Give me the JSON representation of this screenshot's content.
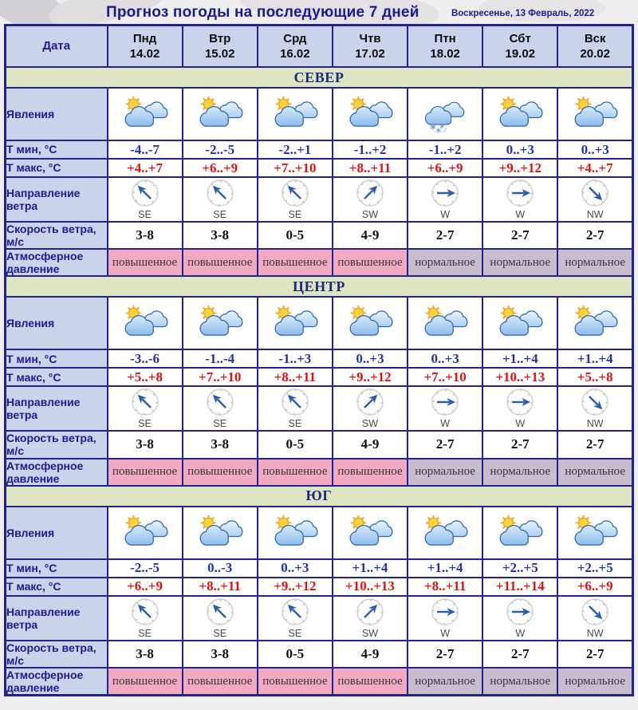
{
  "title": "Прогноз погоды на последующие 7 дней",
  "date_label": "Воскресенье, 13 Февраль, 2022",
  "header": {
    "date_col": "Дата",
    "days": [
      {
        "name": "Пнд",
        "date": "14.02"
      },
      {
        "name": "Втр",
        "date": "15.02"
      },
      {
        "name": "Срд",
        "date": "16.02"
      },
      {
        "name": "Чтв",
        "date": "17.02"
      },
      {
        "name": "Птн",
        "date": "18.02"
      },
      {
        "name": "Сбт",
        "date": "19.02"
      },
      {
        "name": "Вск",
        "date": "20.02"
      }
    ]
  },
  "row_labels": {
    "phenomena": "Явления",
    "tmin": "Т мин, °С",
    "tmax": "Т макс, °С",
    "wind_dir": "Направление ветра",
    "wind_speed": "Скорость ветра, м/с",
    "pressure": "Атмосферное давление"
  },
  "sections": [
    {
      "name": "СЕВЕР",
      "icons": [
        "sun-clouds",
        "sun-clouds",
        "sun-clouds",
        "sun-clouds",
        "snow-clouds",
        "sun-clouds",
        "sun-clouds"
      ],
      "tmin": [
        "-4..-7",
        "-2..-5",
        "-2..+1",
        "-1..+2",
        "-1..+2",
        "0..+3",
        "0..+3"
      ],
      "tmax": [
        "+4..+7",
        "+6..+9",
        "+7..+10",
        "+8..+11",
        "+6..+9",
        "+9..+12",
        "+4..+7"
      ],
      "wind_dir": [
        "SE",
        "SE",
        "SE",
        "SW",
        "W",
        "W",
        "NW"
      ],
      "wind_speed": [
        "3-8",
        "3-8",
        "0-5",
        "4-9",
        "2-7",
        "2-7",
        "2-7"
      ],
      "pressure": [
        "повышенное",
        "повышенное",
        "повышенное",
        "повышенное",
        "нормальное",
        "нормальное",
        "нормальное"
      ]
    },
    {
      "name": "ЦЕНТР",
      "icons": [
        "sun-clouds",
        "sun-clouds",
        "sun-clouds",
        "sun-clouds",
        "sun-clouds",
        "sun-clouds",
        "sun-clouds"
      ],
      "tmin": [
        "-3..-6",
        "-1..-4",
        "-1..+3",
        "0..+3",
        "0..+3",
        "+1..+4",
        "+1..+4"
      ],
      "tmax": [
        "+5..+8",
        "+7..+10",
        "+8..+11",
        "+9..+12",
        "+7..+10",
        "+10..+13",
        "+5..+8"
      ],
      "wind_dir": [
        "SE",
        "SE",
        "SE",
        "SW",
        "W",
        "W",
        "NW"
      ],
      "wind_speed": [
        "3-8",
        "3-8",
        "0-5",
        "4-9",
        "2-7",
        "2-7",
        "2-7"
      ],
      "pressure": [
        "повышенное",
        "повышенное",
        "повышенное",
        "повышенное",
        "нормальное",
        "нормальное",
        "нормальное"
      ]
    },
    {
      "name": "ЮГ",
      "icons": [
        "sun-clouds",
        "sun-clouds",
        "sun-clouds",
        "sun-clouds",
        "sun-clouds",
        "sun-clouds",
        "sun-clouds"
      ],
      "tmin": [
        "-2..-5",
        "0..-3",
        "0..+3",
        "+1..+4",
        "+1..+4",
        "+2..+5",
        "+2..+5"
      ],
      "tmax": [
        "+6..+9",
        "+8..+11",
        "+9..+12",
        "+10..+13",
        "+8..+11",
        "+11..+14",
        "+6..+9"
      ],
      "wind_dir": [
        "SE",
        "SE",
        "SE",
        "SW",
        "W",
        "W",
        "NW"
      ],
      "wind_speed": [
        "3-8",
        "3-8",
        "0-5",
        "4-9",
        "2-7",
        "2-7",
        "2-7"
      ],
      "pressure": [
        "повышенное",
        "повышенное",
        "повышенное",
        "повышенное",
        "нормальное",
        "нормальное",
        "нормальное"
      ]
    }
  ],
  "colors": {
    "border": "#23238d",
    "header_bg": "#c9d3ea",
    "section_bg": "#dde5c3",
    "pressure_high_bg": "#f1aac0",
    "pressure_normal_bg": "#cabccf",
    "tmin_text": "#2133a6",
    "tmax_text": "#e31212",
    "title_text": "#1b1b8f"
  }
}
